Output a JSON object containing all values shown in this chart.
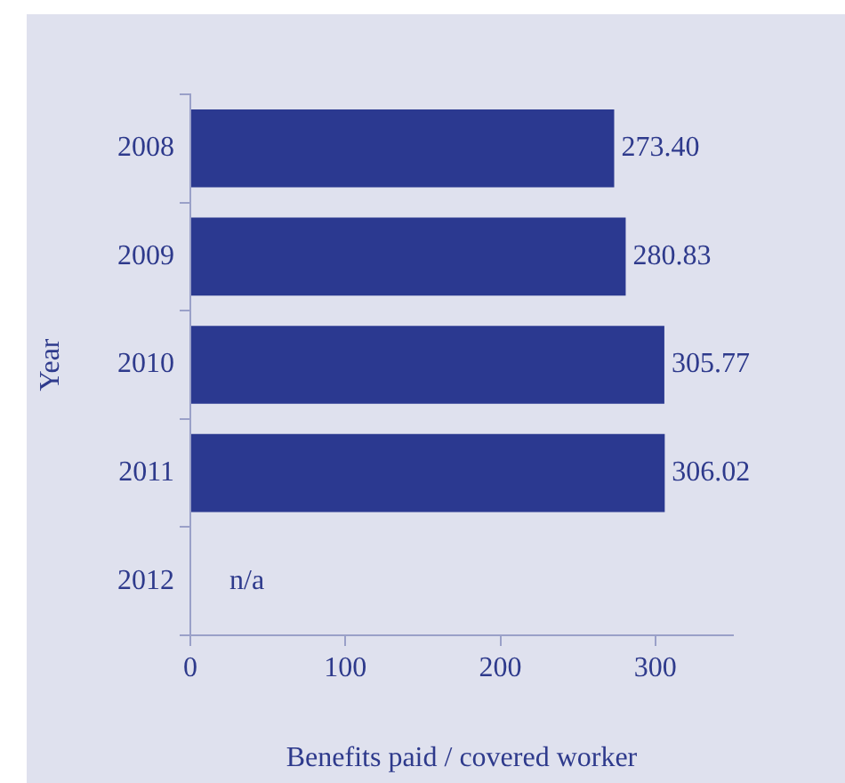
{
  "chart_data": {
    "type": "bar",
    "orientation": "horizontal",
    "xlabel": "Benefits paid / covered worker",
    "ylabel": "Year",
    "categories": [
      "2008",
      "2009",
      "2010",
      "2011",
      "2012"
    ],
    "values": [
      273.4,
      280.83,
      305.77,
      306.02,
      null
    ],
    "value_labels": [
      "273.40",
      "280.83",
      "305.77",
      "306.02",
      "n/a"
    ],
    "color": "#2b3990",
    "xlim": [
      0,
      350
    ],
    "xticks": [
      0,
      100,
      200,
      300
    ],
    "grid": false,
    "legend": false
  }
}
